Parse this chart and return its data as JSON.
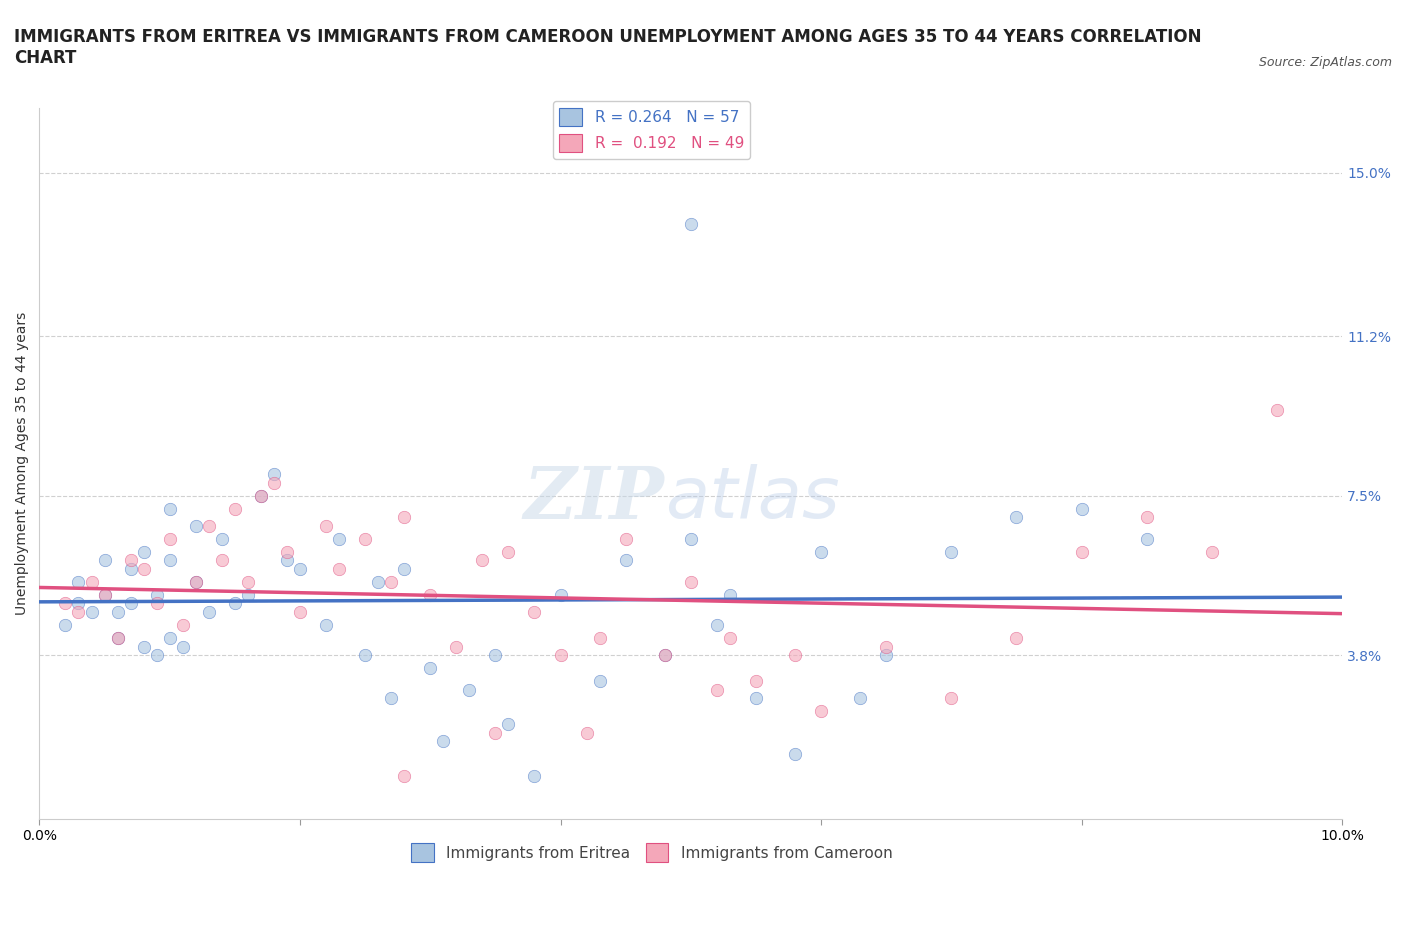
{
  "title": "IMMIGRANTS FROM ERITREA VS IMMIGRANTS FROM CAMEROON UNEMPLOYMENT AMONG AGES 35 TO 44 YEARS CORRELATION\nCHART",
  "source_text": "Source: ZipAtlas.com",
  "ylabel": "Unemployment Among Ages 35 to 44 years",
  "xlim": [
    0.0,
    0.1
  ],
  "ylim": [
    0.0,
    0.165
  ],
  "yticks": [
    0.0,
    0.038,
    0.075,
    0.112,
    0.15
  ],
  "ytick_labels": [
    "",
    "3.8%",
    "7.5%",
    "11.2%",
    "15.0%"
  ],
  "xticks": [
    0.0,
    0.02,
    0.04,
    0.06,
    0.08,
    0.1
  ],
  "xtick_labels": [
    "0.0%",
    "",
    "",
    "",
    "",
    "10.0%"
  ],
  "legend_r1_r": "R = 0.264",
  "legend_r1_n": "N = 57",
  "legend_r2_r": "R =  0.192",
  "legend_r2_n": "N = 49",
  "color_eritrea": "#a8c4e0",
  "color_cameroon": "#f4a7b9",
  "trend_color_eritrea": "#4472c4",
  "trend_color_cameroon": "#e05080",
  "background_color": "#ffffff",
  "eritrea_x": [
    0.002,
    0.003,
    0.003,
    0.004,
    0.005,
    0.005,
    0.006,
    0.006,
    0.007,
    0.007,
    0.008,
    0.008,
    0.009,
    0.009,
    0.01,
    0.01,
    0.01,
    0.011,
    0.012,
    0.012,
    0.013,
    0.014,
    0.015,
    0.016,
    0.017,
    0.018,
    0.019,
    0.02,
    0.022,
    0.023,
    0.025,
    0.026,
    0.027,
    0.028,
    0.03,
    0.031,
    0.033,
    0.035,
    0.036,
    0.038,
    0.04,
    0.043,
    0.045,
    0.048,
    0.05,
    0.053,
    0.055,
    0.058,
    0.06,
    0.063,
    0.065,
    0.07,
    0.075,
    0.08,
    0.085,
    0.05,
    0.052
  ],
  "eritrea_y": [
    0.045,
    0.05,
    0.055,
    0.048,
    0.052,
    0.06,
    0.042,
    0.048,
    0.05,
    0.058,
    0.062,
    0.04,
    0.038,
    0.052,
    0.06,
    0.042,
    0.072,
    0.04,
    0.055,
    0.068,
    0.048,
    0.065,
    0.05,
    0.052,
    0.075,
    0.08,
    0.06,
    0.058,
    0.045,
    0.065,
    0.038,
    0.055,
    0.028,
    0.058,
    0.035,
    0.018,
    0.03,
    0.038,
    0.022,
    0.01,
    0.052,
    0.032,
    0.06,
    0.038,
    0.065,
    0.052,
    0.028,
    0.015,
    0.062,
    0.028,
    0.038,
    0.062,
    0.07,
    0.072,
    0.065,
    0.138,
    0.045
  ],
  "cameroon_x": [
    0.002,
    0.003,
    0.004,
    0.005,
    0.006,
    0.007,
    0.008,
    0.009,
    0.01,
    0.011,
    0.012,
    0.013,
    0.014,
    0.015,
    0.016,
    0.017,
    0.018,
    0.019,
    0.02,
    0.022,
    0.023,
    0.025,
    0.027,
    0.028,
    0.03,
    0.032,
    0.034,
    0.036,
    0.038,
    0.04,
    0.043,
    0.045,
    0.048,
    0.05,
    0.053,
    0.055,
    0.058,
    0.06,
    0.065,
    0.07,
    0.075,
    0.08,
    0.085,
    0.09,
    0.095,
    0.052,
    0.042,
    0.035,
    0.028
  ],
  "cameroon_y": [
    0.05,
    0.048,
    0.055,
    0.052,
    0.042,
    0.06,
    0.058,
    0.05,
    0.065,
    0.045,
    0.055,
    0.068,
    0.06,
    0.072,
    0.055,
    0.075,
    0.078,
    0.062,
    0.048,
    0.068,
    0.058,
    0.065,
    0.055,
    0.07,
    0.052,
    0.04,
    0.06,
    0.062,
    0.048,
    0.038,
    0.042,
    0.065,
    0.038,
    0.055,
    0.042,
    0.032,
    0.038,
    0.025,
    0.04,
    0.028,
    0.042,
    0.062,
    0.07,
    0.062,
    0.095,
    0.03,
    0.02,
    0.02,
    0.01
  ],
  "grid_color": "#d0d0d0",
  "title_fontsize": 12,
  "axis_label_fontsize": 10,
  "tick_fontsize": 10,
  "tick_color_right": "#4472c4",
  "scatter_size": 80,
  "scatter_alpha": 0.6
}
